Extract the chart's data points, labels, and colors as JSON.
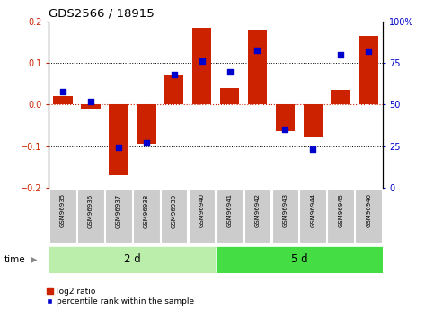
{
  "title": "GDS2566 / 18915",
  "samples": [
    "GSM96935",
    "GSM96936",
    "GSM96937",
    "GSM96938",
    "GSM96939",
    "GSM96940",
    "GSM96941",
    "GSM96942",
    "GSM96943",
    "GSM96944",
    "GSM96945",
    "GSM96946"
  ],
  "log2_ratio": [
    0.02,
    -0.01,
    -0.17,
    -0.095,
    0.07,
    0.185,
    0.04,
    0.18,
    -0.065,
    -0.08,
    0.035,
    0.165
  ],
  "percentile_rank": [
    58,
    52,
    24,
    27,
    68,
    76,
    70,
    83,
    35,
    23,
    80,
    82
  ],
  "group1_label": "2 d",
  "group2_label": "5 d",
  "group1_count": 6,
  "group2_count": 6,
  "bar_color": "#cc2200",
  "dot_color": "#0000cc",
  "ylim_left": [
    -0.2,
    0.2
  ],
  "ylim_right": [
    0,
    100
  ],
  "yticks_left": [
    -0.2,
    -0.1,
    0.0,
    0.1,
    0.2
  ],
  "yticks_right": [
    0,
    25,
    50,
    75,
    100
  ],
  "ytick_labels_right": [
    "0",
    "25",
    "50",
    "75",
    "100%"
  ],
  "group1_color": "#bbeeaa",
  "group2_color": "#44dd44",
  "sample_bg": "#cccccc",
  "zero_line_color": "#cc2200",
  "dotted_line_color": "#000000",
  "time_label": "time",
  "legend_bar_label": "log2 ratio",
  "legend_dot_label": "percentile rank within the sample"
}
